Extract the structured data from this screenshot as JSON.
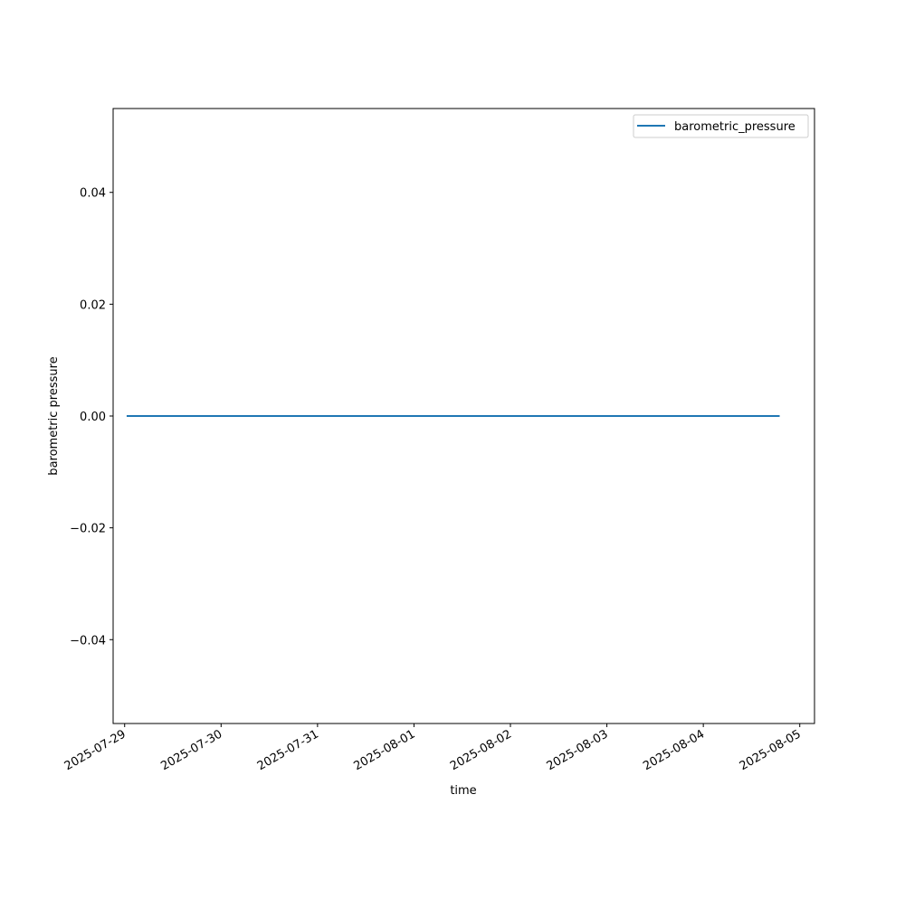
{
  "chart_data": {
    "type": "line",
    "title": "",
    "xlabel": "time",
    "ylabel": "barometric pressure",
    "x_type": "datetime",
    "xlim": [
      "2025-07-28T21:08",
      "2025-08-05T03:40"
    ],
    "ylim": [
      -0.055,
      0.055
    ],
    "x_ticks": [
      "2025-07-29",
      "2025-07-30",
      "2025-07-31",
      "2025-08-01",
      "2025-08-02",
      "2025-08-03",
      "2025-08-04",
      "2025-08-05"
    ],
    "y_ticks": [
      -0.04,
      -0.02,
      0.0,
      0.02,
      0.04
    ],
    "y_tick_labels": [
      "−0.04",
      "−0.02",
      "0.00",
      "0.02",
      "0.04"
    ],
    "grid": false,
    "legend_position": "top-right",
    "series": [
      {
        "name": "barometric_pressure",
        "color": "#1f77b4",
        "x": [
          "2025-07-29T00:30",
          "2025-08-04T19:00"
        ],
        "y": [
          0,
          0
        ]
      }
    ]
  }
}
